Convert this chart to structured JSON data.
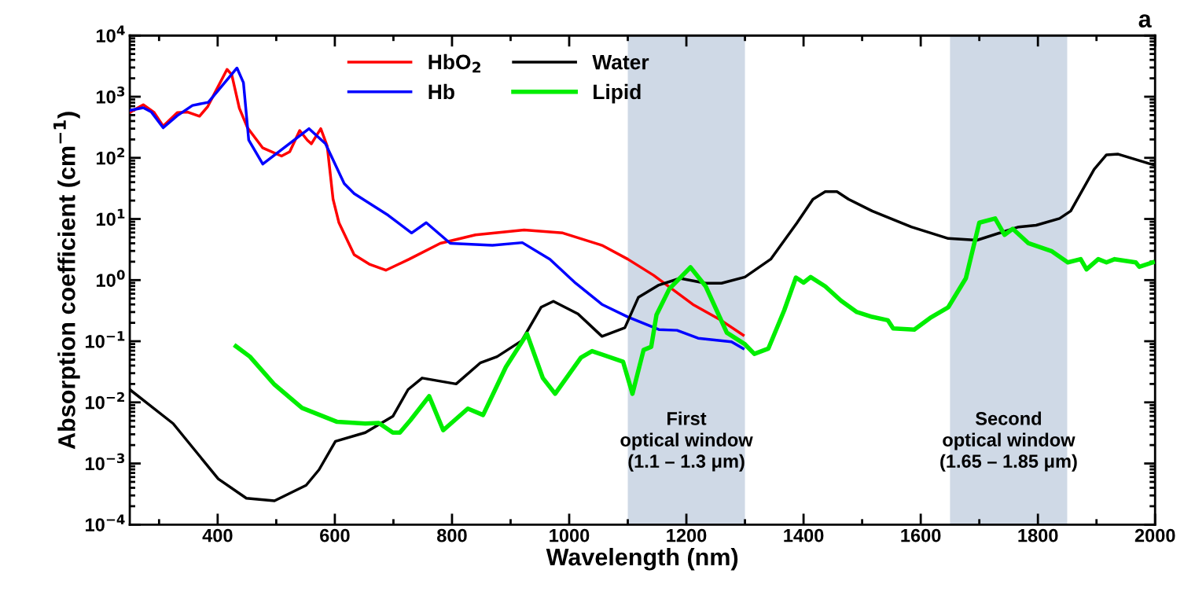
{
  "chart_data": {
    "type": "line",
    "xlabel": "Wavelength (nm)",
    "ylabel": "Absorption coefficient (cm$^{−1}$)",
    "annotations": [
      "a"
    ],
    "log": "y",
    "grid": false,
    "legend": "top",
    "line_style": "solid",
    "marker": "none",
    "xlim": [
      250,
      2000
    ],
    "xticks": [
      400,
      600,
      800,
      1000,
      1200,
      1400,
      1600,
      1800,
      2000
    ],
    "ylim": [
      0.0001,
      10000
    ],
    "yticks": [
      {
        "value": 0.0001,
        "label": "10$^{−4}$"
      },
      {
        "value": 0.001,
        "label": "10$^{−3}$"
      },
      {
        "value": 0.01,
        "label": "10$^{−2}$"
      },
      {
        "value": 0.1,
        "label": "10$^{−1}$"
      },
      {
        "value": 1,
        "label": "10$^{0}$"
      },
      {
        "value": 10,
        "label": "10$^{1}$"
      },
      {
        "value": 100,
        "label": "10$^{2}$"
      },
      {
        "value": 1000,
        "label": "10$^{3}$"
      },
      {
        "value": 10000,
        "label": "10$^{4}$"
      }
    ],
    "bands": [
      {
        "axis": "x",
        "from": 1100,
        "to": 1300,
        "label": "First\noptical window\n(1.1 – 1.3 μm)",
        "color": "#cfd9e6"
      },
      {
        "axis": "x",
        "from": 1650,
        "to": 1850,
        "label": "Second\noptical window\n(1.65 – 1.85 μm)",
        "color": "#cfd9e6"
      }
    ],
    "series": [
      {
        "name": "HbO$_{2}$",
        "color": "#ff0000",
        "x": [
          251,
          273,
          291,
          307,
          331,
          349,
          369,
          383,
          396,
          416,
          424,
          437,
          451,
          477,
          509,
          523,
          540,
          553,
          560,
          576,
          587,
          597,
          607,
          633,
          660,
          687,
          727,
          780,
          840,
          923,
          989,
          1056,
          1100,
          1144,
          1211,
          1256,
          1297
        ],
        "values": [
          560,
          740,
          560,
          330,
          550,
          560,
          480,
          690,
          1200,
          2800,
          2300,
          650,
          310,
          145,
          107,
          126,
          280,
          195,
          170,
          300,
          155,
          21,
          8.7,
          2.6,
          1.8,
          1.45,
          2.2,
          4,
          5.5,
          6.6,
          5.9,
          3.7,
          2.2,
          1.2,
          0.4,
          0.23,
          0.126
        ]
      },
      {
        "name": "Hb",
        "color": "#0000ff",
        "x": [
          251,
          273,
          287,
          307,
          331,
          357,
          384,
          433,
          444,
          453,
          477,
          513,
          556,
          584,
          616,
          633,
          691,
          731,
          756,
          797,
          869,
          920,
          967,
          1011,
          1056,
          1100,
          1153,
          1184,
          1220,
          1277,
          1297
        ],
        "values": [
          600,
          660,
          560,
          310,
          490,
          720,
          810,
          2950,
          1700,
          195,
          79,
          145,
          300,
          170,
          38,
          26,
          11.5,
          5.9,
          8.7,
          4,
          3.7,
          4.1,
          2.2,
          0.89,
          0.4,
          0.25,
          0.155,
          0.151,
          0.112,
          0.098,
          0.076
        ]
      },
      {
        "name": "Water",
        "color": "#000000",
        "x": [
          250,
          324,
          401,
          449,
          497,
          551,
          573,
          601,
          652,
          699,
          725,
          749,
          807,
          848,
          877,
          919,
          952,
          973,
          1015,
          1056,
          1095,
          1118,
          1153,
          1189,
          1233,
          1260,
          1300,
          1344,
          1389,
          1416,
          1437,
          1457,
          1477,
          1517,
          1584,
          1647,
          1696,
          1767,
          1797,
          1837,
          1856,
          1896,
          1917,
          1937,
          1989,
          2000
        ],
        "values": [
          0.0162,
          0.0045,
          0.00056,
          0.00027,
          0.000245,
          0.00044,
          0.00079,
          0.0023,
          0.0032,
          0.0059,
          0.0162,
          0.025,
          0.02,
          0.044,
          0.056,
          0.102,
          0.36,
          0.45,
          0.28,
          0.12,
          0.166,
          0.52,
          0.83,
          1.07,
          0.89,
          0.89,
          1.12,
          2.2,
          8.7,
          21,
          28,
          28,
          21,
          13.5,
          7.4,
          4.8,
          4.5,
          7.4,
          7.9,
          10.2,
          13.5,
          65,
          112,
          115,
          81,
          76
        ]
      },
      {
        "name": "Lipid",
        "color": "#00ee00",
        "x": [
          431,
          455,
          497,
          544,
          604,
          652,
          675,
          699,
          711,
          729,
          761,
          785,
          827,
          853,
          892,
          928,
          955,
          976,
          1020,
          1039,
          1092,
          1108,
          1127,
          1140,
          1149,
          1171,
          1207,
          1233,
          1269,
          1300,
          1316,
          1340,
          1367,
          1387,
          1400,
          1412,
          1437,
          1464,
          1491,
          1517,
          1544,
          1553,
          1589,
          1616,
          1647,
          1677,
          1700,
          1727,
          1743,
          1757,
          1784,
          1824,
          1851,
          1873,
          1883,
          1903,
          1917,
          1931,
          1967,
          1973,
          1996
        ],
        "values": [
          0.083,
          0.056,
          0.0195,
          0.0081,
          0.0048,
          0.0045,
          0.0046,
          0.0032,
          0.0032,
          0.0051,
          0.0126,
          0.0035,
          0.0079,
          0.0062,
          0.038,
          0.132,
          0.025,
          0.0138,
          0.054,
          0.069,
          0.046,
          0.0138,
          0.072,
          0.081,
          0.27,
          0.72,
          1.62,
          0.79,
          0.138,
          0.089,
          0.062,
          0.076,
          0.32,
          1.1,
          0.91,
          1.12,
          0.79,
          0.46,
          0.3,
          0.25,
          0.22,
          0.162,
          0.155,
          0.24,
          0.36,
          1.07,
          8.7,
          10.2,
          5.5,
          6.9,
          4,
          2.95,
          1.95,
          2.2,
          1.5,
          2.2,
          1.95,
          2.2,
          1.95,
          1.65,
          1.95
        ]
      }
    ]
  }
}
